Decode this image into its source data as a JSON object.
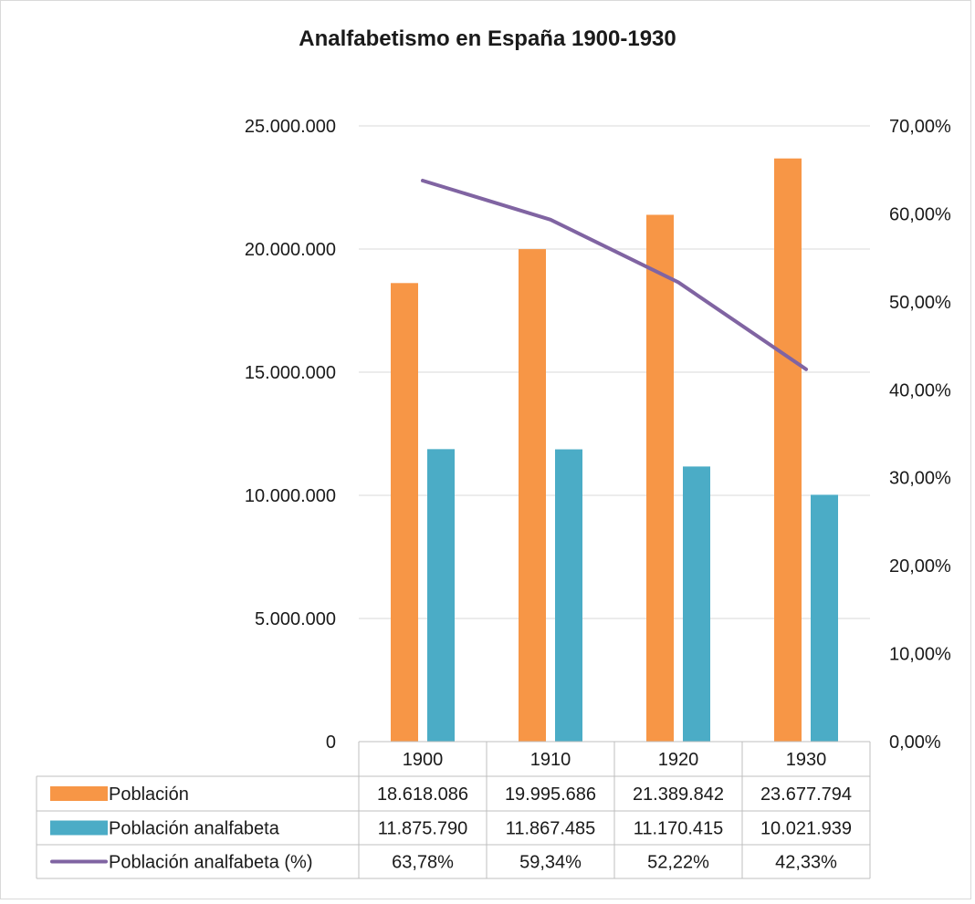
{
  "chart_data": {
    "type": "bar",
    "title": "Analfabetismo en España 1900-1930",
    "categories": [
      "1900",
      "1910",
      "1920",
      "1930"
    ],
    "y_left": {
      "range": [
        0,
        25000000
      ],
      "ticks": [
        0,
        5000000,
        10000000,
        15000000,
        20000000,
        25000000
      ],
      "tick_labels": [
        "0",
        "5.000.000",
        "10.000.000",
        "15.000.000",
        "20.000.000",
        "25.000.000"
      ]
    },
    "y_right": {
      "range": [
        0,
        0.7
      ],
      "ticks": [
        0,
        0.1,
        0.2,
        0.3,
        0.4,
        0.5,
        0.6,
        0.7
      ],
      "tick_labels": [
        "0,00%",
        "10,00%",
        "20,00%",
        "30,00%",
        "40,00%",
        "50,00%",
        "60,00%",
        "70,00%"
      ]
    },
    "grid": true,
    "legend": "data-table",
    "series": [
      {
        "name": "Población",
        "kind": "bar",
        "axis": "left",
        "color": "#F79646",
        "values": [
          18618086,
          19995686,
          21389842,
          23677794
        ],
        "labels": [
          "18.618.086",
          "19.995.686",
          "21.389.842",
          "23.677.794"
        ]
      },
      {
        "name": "Población analfabeta",
        "kind": "bar",
        "axis": "left",
        "color": "#4BACC6",
        "values": [
          11875790,
          11867485,
          11170415,
          10021939
        ],
        "labels": [
          "11.875.790",
          "11.867.485",
          "11.170.415",
          "10.021.939"
        ]
      },
      {
        "name": "Población analfabeta (%)",
        "kind": "line",
        "axis": "right",
        "color": "#8064A2",
        "values": [
          0.6378,
          0.5934,
          0.5222,
          0.4233
        ],
        "labels": [
          "63,78%",
          "59,34%",
          "52,22%",
          "42,33%"
        ]
      }
    ]
  }
}
